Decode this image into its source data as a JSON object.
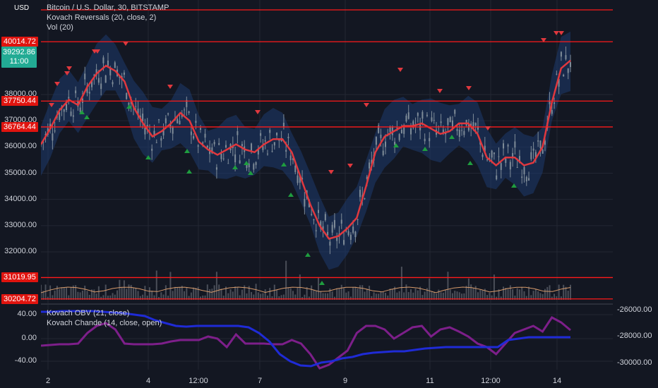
{
  "legend": {
    "symbol": "Bitcoin / U.S. Dollar, 30, BITSTAMP",
    "indicator1": "Kovach Reversals (20, close, 2)",
    "indicator2": "Vol (20)"
  },
  "legend_sub": {
    "indicator1": "Kovach OBV (21, close)",
    "indicator2": "Kovach Chande (14, close, open)"
  },
  "currency_button": "USD",
  "current_price": {
    "price": "39292.86",
    "countdown": "11:00"
  },
  "price_axis_labels": [
    "38000.00",
    "37000.00",
    "36000.00",
    "35000.00",
    "34000.00",
    "33000.00",
    "32000.00"
  ],
  "horizontal_lines": [
    "40014.72",
    "37750.44",
    "36764.44",
    "31019.95",
    "30204.72"
  ],
  "sub_axis_left": [
    "40.00",
    "0.00",
    "-40.00"
  ],
  "sub_axis_right": [
    "-26000.00",
    "-28000.00",
    "-30000.00"
  ],
  "time_axis": [
    "2",
    "4",
    "12:00",
    "7",
    "9",
    "11",
    "12:00",
    "14"
  ],
  "colors": {
    "background": "#131722",
    "candle": "#7f8c98",
    "band": "#1e3a6e",
    "ma": "#e0383e",
    "level": "#ff1a1a",
    "obv": "#1f2bd6",
    "chande": "#7d1f8a",
    "sell": "#e0383e",
    "buy": "#1f9d3f"
  },
  "chart_data": {
    "type": "line",
    "title": "Bitcoin / U.S. Dollar, 30, BITSTAMP",
    "ylim": [
      30204.72,
      40900
    ],
    "levels": [
      40014.72,
      37750.44,
      36764.44,
      31019.95,
      30204.72
    ],
    "series": [
      {
        "name": "Kovach Reversals (20, close, 2)",
        "values": [
          36100,
          36700,
          37400,
          37800,
          37600,
          38300,
          38800,
          39100,
          38900,
          38500,
          37500,
          36900,
          36400,
          36600,
          36900,
          37300,
          37000,
          36200,
          35900,
          35700,
          35900,
          36100,
          35900,
          35800,
          36100,
          36300,
          36300,
          35800,
          34800,
          33800,
          33000,
          32500,
          32600,
          32900,
          33300,
          34500,
          35800,
          36400,
          36600,
          36800,
          36800,
          36900,
          36700,
          36500,
          36600,
          36900,
          36900,
          36500,
          35600,
          35300,
          35600,
          35600,
          35300,
          35400,
          36000,
          37700,
          39000,
          39300
        ]
      }
    ]
  }
}
